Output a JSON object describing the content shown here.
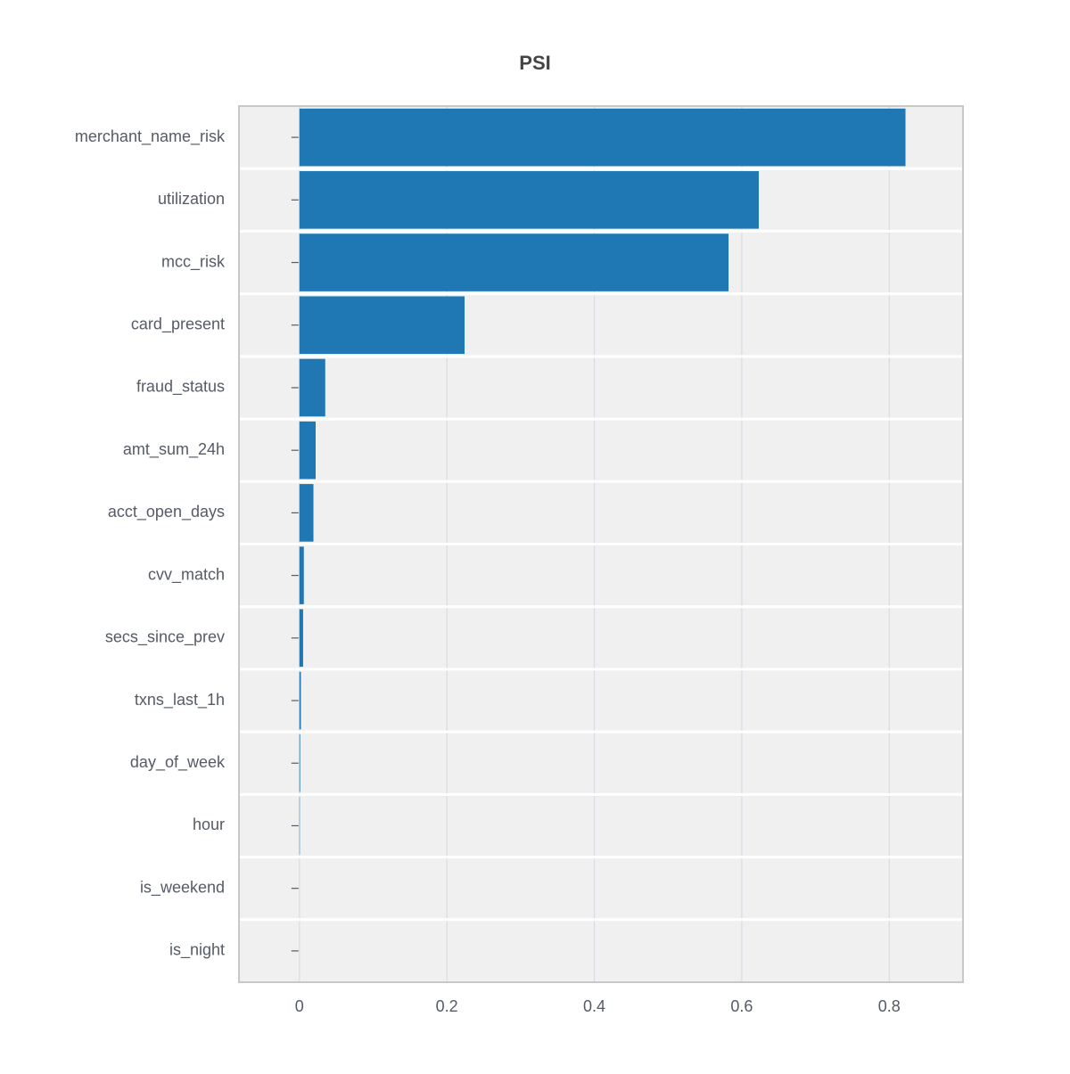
{
  "chart_data": {
    "type": "barh",
    "title": "PSI",
    "categories": [
      "merchant_name_risk",
      "utilization",
      "mcc_risk",
      "card_present",
      "fraud_status",
      "amt_sum_24h",
      "acct_open_days",
      "cvv_match",
      "secs_since_prev",
      "txns_last_1h",
      "day_of_week",
      "hour",
      "is_weekend",
      "is_night"
    ],
    "values": [
      0.822,
      0.623,
      0.582,
      0.224,
      0.035,
      0.022,
      0.019,
      0.006,
      0.005,
      0.002,
      0.001,
      0.0005,
      0,
      0
    ],
    "color": "#1f77b4",
    "xlim": [
      -0.082,
      0.9
    ],
    "xticks": [
      0,
      0.2,
      0.4,
      0.6,
      0.8
    ],
    "grid": true
  }
}
